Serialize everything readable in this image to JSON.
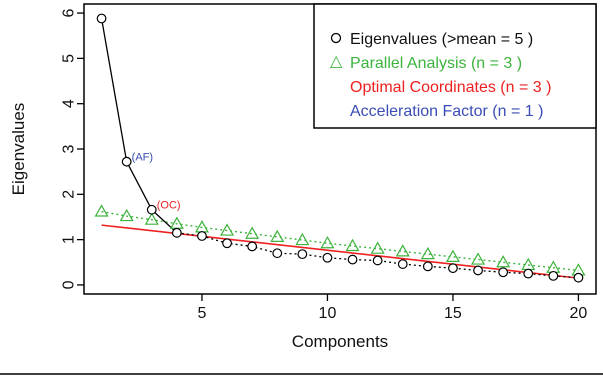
{
  "chart_data": {
    "type": "scatter",
    "xlabel": "Components",
    "ylabel": "Eigenvalues",
    "xlim": [
      0.3,
      20.7
    ],
    "ylim": [
      -0.2,
      6.2
    ],
    "xticks": [
      5,
      10,
      15,
      20
    ],
    "yticks": [
      0,
      1,
      2,
      3,
      4,
      5,
      6
    ],
    "grid": false,
    "legend_position": "top-right",
    "colors": {
      "eigen": "#000000",
      "parallel": "#3cb33c",
      "oc": "#ee2020",
      "af": "#3a4db5"
    },
    "eigenvalues": {
      "x": [
        1,
        2,
        3,
        4,
        5,
        6,
        7,
        8,
        9,
        10,
        11,
        12,
        13,
        14,
        15,
        16,
        17,
        18,
        19,
        20
      ],
      "y": [
        5.88,
        2.72,
        1.66,
        1.15,
        1.08,
        0.92,
        0.85,
        0.7,
        0.68,
        0.6,
        0.56,
        0.54,
        0.46,
        0.41,
        0.37,
        0.32,
        0.28,
        0.25,
        0.2,
        0.16
      ]
    },
    "parallel_analysis": {
      "x": [
        1,
        2,
        3,
        4,
        5,
        6,
        7,
        8,
        9,
        10,
        11,
        12,
        13,
        14,
        15,
        16,
        17,
        18,
        19,
        20
      ],
      "y": [
        1.62,
        1.52,
        1.44,
        1.35,
        1.27,
        1.2,
        1.13,
        1.06,
        0.99,
        0.92,
        0.86,
        0.8,
        0.74,
        0.68,
        0.62,
        0.56,
        0.5,
        0.44,
        0.38,
        0.32
      ]
    },
    "optimal_coordinates_line": {
      "x": [
        1,
        20
      ],
      "y": [
        1.32,
        0.15
      ]
    },
    "acceleration_factor_line": {
      "x": [
        1,
        2
      ],
      "y": [
        5.88,
        2.72
      ]
    },
    "oc_connector": {
      "x": [
        3,
        4
      ],
      "y": [
        1.66,
        1.15
      ]
    },
    "annotations": [
      {
        "text": "(AF)",
        "x": 2,
        "y": 2.72,
        "color_key": "af"
      },
      {
        "text": "(OC)",
        "x": 3,
        "y": 1.66,
        "color_key": "oc"
      }
    ],
    "legend": [
      {
        "symbol": "o",
        "label": "Eigenvalues (>mean  =  5 )",
        "color_key": "eigen"
      },
      {
        "symbol": "△",
        "label": "Parallel Analysis (n =  3 )",
        "color_key": "parallel"
      },
      {
        "symbol": "",
        "label": "Optimal Coordinates (n =  3 )",
        "color_key": "oc"
      },
      {
        "symbol": "",
        "label": "Acceleration Factor (n =  1 )",
        "color_key": "af"
      }
    ]
  }
}
